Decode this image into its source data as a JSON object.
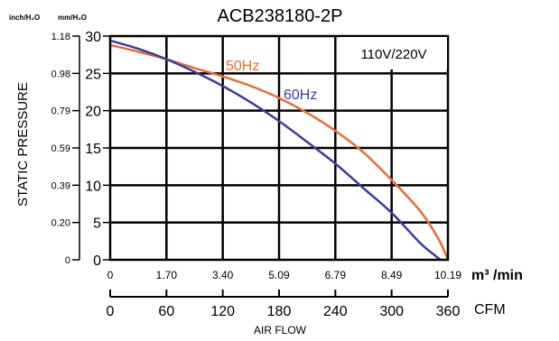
{
  "chart_data": {
    "type": "line",
    "title": "ACB238180-2P",
    "voltage_label": "110V/220V",
    "ylabel": "STATIC PRESSURE",
    "xlabel": "AIR FLOW",
    "unit_inch": "inch/H₂O",
    "unit_mm": "mm/H₂O",
    "unit_m3": "m³ /min",
    "unit_cfm": "CFM",
    "ylim": [
      0,
      30
    ],
    "xlim_cfm": [
      0,
      360
    ],
    "xlim_m3": [
      0,
      10.19
    ],
    "y_ticks_mm": [
      "0",
      "5",
      "10",
      "15",
      "20",
      "25",
      "30"
    ],
    "y_ticks_inch": [
      "0",
      "0.20",
      "0.39",
      "0.59",
      "0.79",
      "0.98",
      "1.18"
    ],
    "x_ticks_m3": [
      "0",
      "1.70",
      "3.40",
      "5.09",
      "6.79",
      "8.49",
      "10.19"
    ],
    "x_ticks_cfm": [
      "0",
      "60",
      "120",
      "180",
      "240",
      "300",
      "360"
    ],
    "grid": true,
    "series": [
      {
        "name": "50Hz",
        "color": "#ee6a2e",
        "x": [
          0,
          30,
          60,
          90,
          120,
          150,
          180,
          210,
          240,
          270,
          300,
          330,
          350,
          360
        ],
        "y": [
          28.8,
          27.9,
          26.9,
          25.7,
          24.6,
          23.3,
          21.7,
          19.7,
          17.3,
          14.4,
          10.7,
          6.6,
          2.8,
          0
        ]
      },
      {
        "name": "60Hz",
        "color": "#3a3aa8",
        "x": [
          0,
          30,
          60,
          90,
          120,
          150,
          180,
          210,
          240,
          270,
          300,
          330,
          345,
          352
        ],
        "y": [
          29.4,
          28.3,
          26.9,
          25.2,
          23.3,
          21.1,
          18.6,
          15.8,
          12.9,
          9.6,
          6.3,
          2.3,
          0.7,
          0
        ]
      }
    ]
  }
}
